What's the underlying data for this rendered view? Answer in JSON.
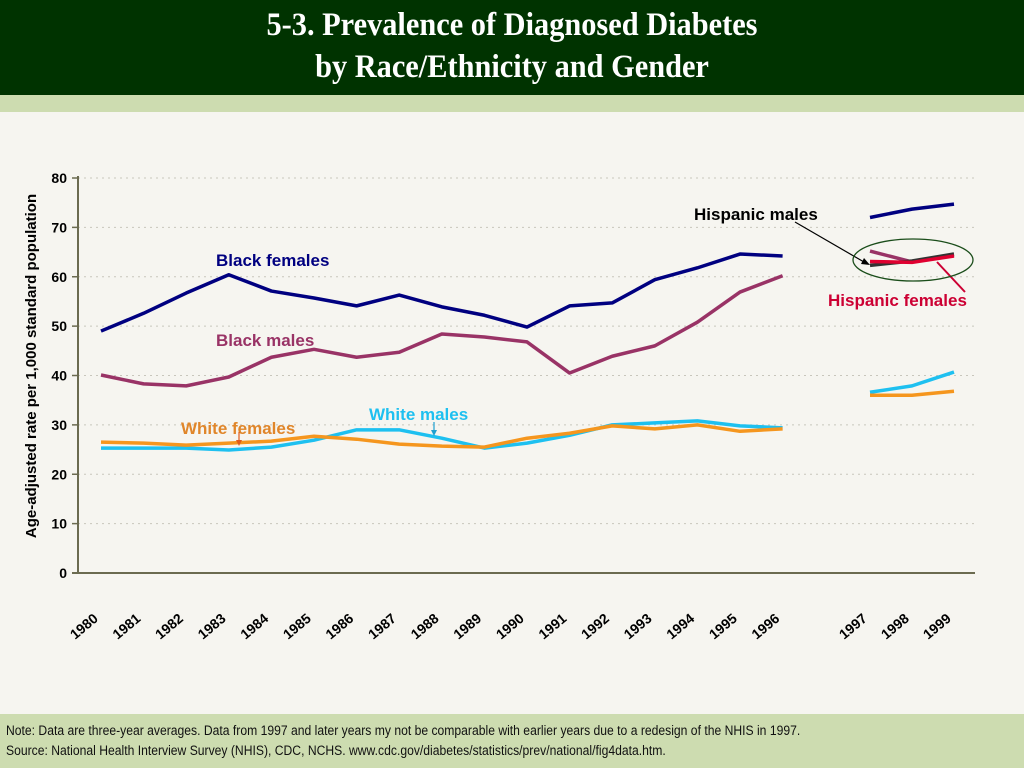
{
  "header": {
    "title_line1": "5-3. Prevalence of Diagnosed Diabetes",
    "title_line2": "by Race/Ethnicity and Gender"
  },
  "footer": {
    "note": "Note: Data are three-year averages. Data from 1997 and later years my not be comparable with earlier years due to a redesign of the NHIS in 1997.",
    "source": "Source: National Health Interview Survey (NHIS), CDC, NCHS.  www.cdc.gov/diabetes/statistics/prev/national/fig4data.htm."
  },
  "colors": {
    "header_bg": "#003300",
    "band_bg": "#cddcb0",
    "black_females": "#000080",
    "black_males": "#993366",
    "white_males": "#1ec0f0",
    "white_females": "#f5961e",
    "hispanic_males": "#333333",
    "hispanic_females": "#e00030",
    "ellipse": "#1a5c1a"
  },
  "chart_data": {
    "type": "line",
    "title": "5-3. Prevalence of Diagnosed Diabetes by Race/Ethnicity and Gender",
    "xlabel": "",
    "ylabel": "Age-adjusted rate per 1,000 standard population",
    "ylim": [
      0,
      80
    ],
    "yticks": [
      "0",
      "10",
      "20",
      "30",
      "40",
      "50",
      "60",
      "70",
      "80"
    ],
    "grid": "horizontal dotted",
    "categories": [
      "1980",
      "1981",
      "1982",
      "1983",
      "1984",
      "1985",
      "1986",
      "1987",
      "1988",
      "1989",
      "1990",
      "1991",
      "1992",
      "1993",
      "1994",
      "1995",
      "1996",
      "1997",
      "1998",
      "1999"
    ],
    "note": "Series break between 1996 and 1997 (NHIS redesign)",
    "series": [
      {
        "name": "Black females",
        "color_key": "black_females",
        "values": [
          49.0,
          52.6,
          56.7,
          60.4,
          57.1,
          55.7,
          54.1,
          56.3,
          53.9,
          52.2,
          49.8,
          54.1,
          54.7,
          59.4,
          61.8,
          64.6,
          64.2,
          72.0,
          73.7,
          74.7
        ]
      },
      {
        "name": "Black males",
        "color_key": "black_males",
        "values": [
          40.1,
          38.3,
          37.9,
          39.7,
          43.7,
          45.3,
          43.7,
          44.7,
          48.4,
          47.8,
          46.8,
          40.5,
          43.9,
          46.0,
          50.8,
          56.9,
          60.2,
          65.2,
          63.0,
          64.4
        ]
      },
      {
        "name": "White males",
        "color_key": "white_males",
        "values": [
          25.3,
          25.3,
          25.3,
          24.9,
          25.5,
          26.9,
          29.0,
          29.0,
          27.3,
          25.3,
          26.3,
          27.9,
          30.0,
          30.4,
          30.8,
          29.8,
          29.4,
          36.6,
          37.9,
          40.7
        ]
      },
      {
        "name": "White females",
        "color_key": "white_females",
        "values": [
          26.5,
          26.3,
          25.9,
          26.3,
          26.7,
          27.7,
          27.1,
          26.1,
          25.7,
          25.5,
          27.3,
          28.3,
          29.8,
          29.2,
          30.0,
          28.7,
          29.2,
          36.0,
          36.0,
          36.8
        ]
      },
      {
        "name": "Hispanic males",
        "color_key": "hispanic_males",
        "values": [
          null,
          null,
          null,
          null,
          null,
          null,
          null,
          null,
          null,
          null,
          null,
          null,
          null,
          null,
          null,
          null,
          null,
          62.3,
          63.2,
          64.6
        ]
      },
      {
        "name": "Hispanic females",
        "color_key": "hispanic_females",
        "values": [
          null,
          null,
          null,
          null,
          null,
          null,
          null,
          null,
          null,
          null,
          null,
          null,
          null,
          null,
          null,
          null,
          null,
          63.1,
          62.9,
          64.2
        ]
      }
    ],
    "annotations": [
      {
        "text": "Black females",
        "series": "Black females"
      },
      {
        "text": "Black males",
        "series": "Black males"
      },
      {
        "text": "White  females",
        "series": "White females"
      },
      {
        "text": "White males",
        "series": "White males"
      },
      {
        "text": "Hispanic males",
        "series": "Hispanic males"
      },
      {
        "text": "Hispanic females",
        "series": "Hispanic females"
      }
    ]
  }
}
